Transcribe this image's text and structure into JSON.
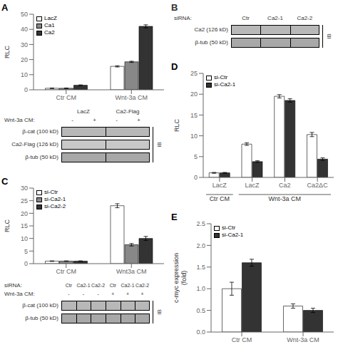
{
  "chart_data": [
    {
      "type": "bar",
      "title": "A",
      "categories": [
        "Ctr CM",
        "Wnt-3a CM"
      ],
      "series": [
        {
          "name": "LacZ",
          "color": "white",
          "values": [
            1.0,
            15.5
          ],
          "errors": [
            0.15,
            0.4
          ]
        },
        {
          "name": "Ca1",
          "color": "#888888",
          "values": [
            1.0,
            18.5
          ],
          "errors": [
            0.15,
            0.4
          ]
        },
        {
          "name": "Ca2",
          "color": "#333333",
          "values": [
            3.0,
            42.0
          ],
          "errors": [
            0.25,
            1.0
          ]
        }
      ],
      "ylabel": "RLC",
      "ylim": [
        0,
        50
      ],
      "yticks": [
        0,
        10,
        20,
        30,
        40,
        50
      ],
      "legend": "upper left"
    },
    {
      "type": "blot",
      "categories": [
        "β-cat (100 kD)",
        "Ca2-Flag (126 kD)",
        "β-tub (50 kD)"
      ],
      "colors": [
        "#b8b8b8",
        "#c8c8c8",
        "#a8a8a8"
      ],
      "annotations": [
        [
          null,
          "LacZ",
          "Ca2-Flag"
        ],
        [
          "Wnt-3a CM:",
          "-",
          "+",
          "-",
          "+"
        ]
      ],
      "ylabel": "IB"
    },
    {
      "type": "bar",
      "title": "C",
      "categories": [
        "Ctr CM",
        "Wnt3a CM"
      ],
      "series": [
        {
          "name": "si-Ctr",
          "color": "white",
          "values": [
            1.0,
            23.0
          ],
          "errors": [
            0.1,
            0.8
          ]
        },
        {
          "name": "si-Ca2-1",
          "color": "#888888",
          "values": [
            1.0,
            7.5
          ],
          "errors": [
            0.1,
            0.5
          ]
        },
        {
          "name": "si-Ca2-2",
          "color": "#333333",
          "values": [
            1.0,
            10.0
          ],
          "errors": [
            0.1,
            0.8
          ]
        }
      ],
      "ylabel": "RLC",
      "ylim": [
        0,
        30
      ],
      "yticks": [
        0,
        5,
        10,
        15,
        20,
        25,
        30
      ],
      "legend": "upper left"
    },
    {
      "type": "blot",
      "categories": [
        "β-cat (100 kD)",
        "β-tub (50 kD)"
      ],
      "colors": [
        "#b8b8b8",
        "#a8a8a8"
      ],
      "annotations": [
        [
          "siRNA:",
          "Ctr",
          "Ca2-1",
          "Ca2-2",
          "Ctr",
          "Ca2-1",
          "Ca2-2"
        ],
        [
          "Wnt-3a CM:",
          "-",
          "-",
          "-",
          "+",
          "+",
          "+"
        ]
      ],
      "ylabel": "IB"
    },
    {
      "type": "blot",
      "title": "B",
      "categories": [
        "Ca2 (126 kD)",
        "β-tub (50 kD)"
      ],
      "colors": [
        "#b8b8b8",
        "#a8a8a8"
      ],
      "annotations": [
        [
          "siRNA:",
          "Ctr",
          "Ca2-1",
          "Ca2-2"
        ]
      ],
      "ylabel": "IB"
    },
    {
      "type": "bar",
      "title": "D",
      "categories": [
        "LacZ",
        "LacZ",
        "Ca2",
        "Ca2ΔC"
      ],
      "series": [
        {
          "name": "si-Ctr",
          "color": "white",
          "values": [
            1.1,
            8.0,
            19.5,
            10.3
          ],
          "errors": [
            0.1,
            0.3,
            0.4,
            0.5
          ]
        },
        {
          "name": "si-Ca2-1",
          "color": "#333333",
          "values": [
            1.1,
            3.8,
            18.5,
            4.4
          ],
          "errors": [
            0.1,
            0.2,
            0.4,
            0.3
          ]
        }
      ],
      "annotations": [
        "Ctr CM",
        "Wnt-3a CM"
      ],
      "ylabel": "RLC",
      "ylim": [
        0,
        25
      ],
      "yticks": [
        0,
        5,
        10,
        15,
        20,
        25
      ],
      "legend": "upper left"
    },
    {
      "type": "bar",
      "title": "E",
      "categories": [
        "Ctr CM",
        "Wnt-3a CM"
      ],
      "series": [
        {
          "name": "si-Ctr",
          "color": "white",
          "values": [
            1.0,
            0.6
          ],
          "errors": [
            0.15,
            0.05
          ]
        },
        {
          "name": "si-Ca2-1",
          "color": "#333333",
          "values": [
            1.6,
            0.5
          ],
          "errors": [
            0.08,
            0.05
          ]
        }
      ],
      "ylabel": "c-myc expression\n(fold)",
      "ylim": [
        0.0,
        2.5
      ],
      "yticks": [
        {
          "value": 0.0,
          "label": "0.0"
        },
        0.5,
        {
          "value": 1.0,
          "label": "1.0"
        },
        1.5,
        {
          "value": 2.0,
          "label": "2.0"
        },
        2.5
      ],
      "legend": "upper left"
    }
  ]
}
